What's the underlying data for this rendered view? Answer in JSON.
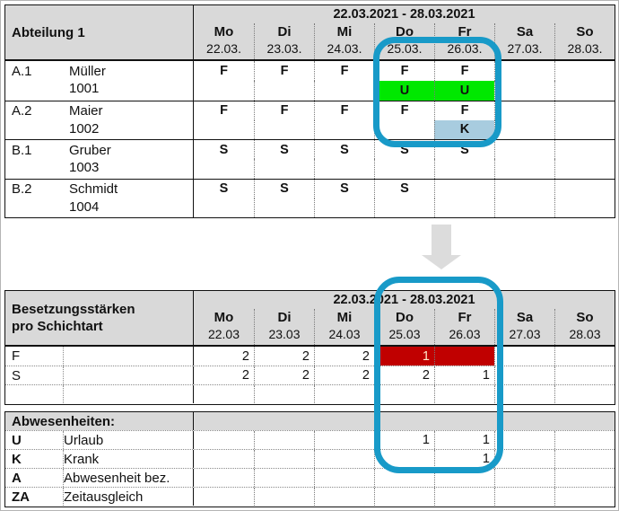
{
  "colors": {
    "highlight_outline": "#189AC8",
    "header_gray": "#D9D9D9",
    "vacation_green": "#00E800",
    "sick_lightblue": "#A8CCDF",
    "understaffed_red": "#C00000",
    "shift_f_blue": "#2E74B5",
    "shift_s_green": "#00B050",
    "arrow_gray": "#DCDCDC"
  },
  "schedule": {
    "title": "Abteilung 1",
    "week_label": "22.03.2021 - 28.03.2021",
    "day_names": [
      "Mo",
      "Di",
      "Mi",
      "Do",
      "Fr",
      "Sa",
      "So"
    ],
    "day_dates": [
      "22.03.",
      "23.03.",
      "24.03.",
      "25.03.",
      "26.03.",
      "27.03.",
      "28.03."
    ],
    "rows": [
      {
        "id": "A.1",
        "name": "Müller",
        "number": "1001",
        "shifts": [
          "F",
          "F",
          "F",
          "F",
          "F",
          "",
          ""
        ],
        "absences": [
          "",
          "",
          "",
          "U",
          "U",
          "",
          ""
        ],
        "absence_bg": [
          "",
          "",
          "",
          "green",
          "green",
          "",
          ""
        ]
      },
      {
        "id": "A.2",
        "name": "Maier",
        "number": "1002",
        "shifts": [
          "F",
          "F",
          "F",
          "F",
          "F",
          "",
          ""
        ],
        "absences": [
          "",
          "",
          "",
          "",
          "K",
          "",
          ""
        ],
        "absence_bg": [
          "",
          "",
          "",
          "",
          "lblue",
          "",
          ""
        ]
      },
      {
        "id": "B.1",
        "name": "Gruber",
        "number": "1003",
        "shifts": [
          "S",
          "S",
          "S",
          "S",
          "S",
          "",
          ""
        ],
        "absences": [
          "",
          "",
          "",
          "",
          "",
          "",
          ""
        ],
        "absence_bg": [
          "",
          "",
          "",
          "",
          "",
          "",
          ""
        ]
      },
      {
        "id": "B.2",
        "name": "Schmidt",
        "number": "1004",
        "shifts": [
          "S",
          "S",
          "S",
          "S",
          "",
          "",
          ""
        ],
        "absences": [
          "",
          "",
          "",
          "",
          "",
          "",
          ""
        ],
        "absence_bg": [
          "",
          "",
          "",
          "",
          "",
          "",
          ""
        ]
      }
    ]
  },
  "staffing": {
    "title_line1": "Besetzungsstärken",
    "title_line2": "pro Schichtart",
    "week_label": "22.03.2021 - 28.03.2021",
    "day_names": [
      "Mo",
      "Di",
      "Mi",
      "Do",
      "Fr",
      "Sa",
      "So"
    ],
    "day_dates": [
      "22.03",
      "23.03",
      "24.03",
      "25.03",
      "26.03",
      "27.03",
      "28.03"
    ],
    "rows": [
      {
        "code": "F",
        "values": [
          "2",
          "2",
          "2",
          "1",
          "",
          "",
          ""
        ],
        "cell_bg": [
          "",
          "",
          "",
          "red",
          "red",
          "",
          ""
        ]
      },
      {
        "code": "S",
        "values": [
          "2",
          "2",
          "2",
          "2",
          "1",
          "",
          ""
        ],
        "cell_bg": [
          "",
          "",
          "",
          "",
          "",
          "",
          ""
        ]
      },
      {
        "code": "",
        "values": [
          "",
          "",
          "",
          "",
          "",
          "",
          ""
        ],
        "cell_bg": [
          "",
          "",
          "",
          "",
          "",
          "",
          ""
        ]
      }
    ],
    "absences_header": "Abwesenheiten:",
    "absence_rows": [
      {
        "code": "U",
        "label": "Urlaub",
        "values": [
          "",
          "",
          "",
          "1",
          "1",
          "",
          ""
        ]
      },
      {
        "code": "K",
        "label": "Krank",
        "values": [
          "",
          "",
          "",
          "",
          "1",
          "",
          ""
        ]
      },
      {
        "code": "A",
        "label": "Abwesenheit bez.",
        "values": [
          "",
          "",
          "",
          "",
          "",
          "",
          ""
        ]
      },
      {
        "code": "ZA",
        "label": "Zeitausgleich",
        "values": [
          "",
          "",
          "",
          "",
          "",
          "",
          ""
        ]
      }
    ]
  },
  "annotations": {
    "highlighted_columns": [
      "Do",
      "Fr"
    ],
    "arrow_direction": "down"
  }
}
